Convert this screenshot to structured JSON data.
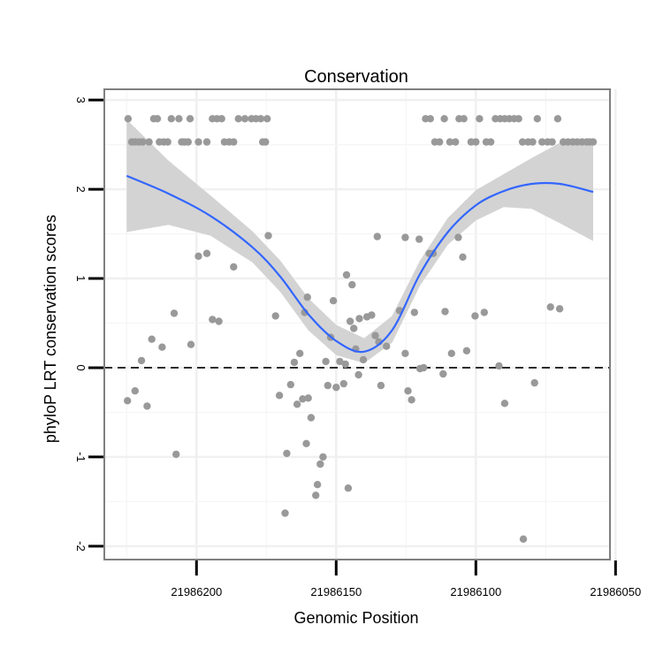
{
  "chart_data": {
    "type": "scatter",
    "title": "Conservation",
    "xlabel": "Genomic Position",
    "ylabel": "phyloP LRT conservation scores",
    "x_reversed": true,
    "xlim": [
      21986052,
      21986233
    ],
    "ylim": [
      -2.15,
      3.12
    ],
    "x_ticks": [
      {
        "value": 21986200,
        "label": "21986200"
      },
      {
        "value": 21986150,
        "label": "21986150"
      },
      {
        "value": 21986100,
        "label": "21986100"
      },
      {
        "value": 21986050,
        "label": "21986050"
      }
    ],
    "y_ticks": [
      {
        "value": -2,
        "label": "-2"
      },
      {
        "value": -1,
        "label": "-1"
      },
      {
        "value": 0,
        "label": "0"
      },
      {
        "value": 1,
        "label": "1"
      },
      {
        "value": 2,
        "label": "2"
      },
      {
        "value": 3,
        "label": "3"
      }
    ],
    "reference_line": {
      "y": 0,
      "style": "dashed"
    },
    "grid": true,
    "colors": {
      "points": "#999999",
      "smooth": "#3366ff",
      "ribbon": "#d3d3d3",
      "reference": "#000000",
      "frame": "#7f7f7f"
    },
    "smooth": {
      "x": [
        21986225,
        21986210,
        21986195,
        21986180,
        21986170,
        21986160,
        21986150,
        21986140,
        21986130,
        21986120,
        21986110,
        21986100,
        21986090,
        21986080,
        21986070,
        21986058
      ],
      "y": [
        2.15,
        1.95,
        1.7,
        1.35,
        1.02,
        0.6,
        0.3,
        0.18,
        0.42,
        1.05,
        1.52,
        1.82,
        1.98,
        2.06,
        2.06,
        1.97
      ],
      "lower": [
        1.52,
        1.6,
        1.48,
        1.18,
        0.85,
        0.42,
        0.14,
        0.05,
        0.28,
        0.92,
        1.38,
        1.65,
        1.8,
        1.78,
        1.62,
        1.42
      ],
      "upper": [
        2.78,
        2.32,
        1.93,
        1.53,
        1.2,
        0.78,
        0.48,
        0.33,
        0.58,
        1.2,
        1.68,
        1.99,
        2.17,
        2.35,
        2.52,
        2.52
      ]
    },
    "points": [
      [
        21986224.5,
        2.79
      ],
      [
        21986223.2,
        2.53
      ],
      [
        21986222.0,
        2.53
      ],
      [
        21986220.6,
        2.53
      ],
      [
        21986219.3,
        2.53
      ],
      [
        21986217.0,
        2.53
      ],
      [
        21986215.3,
        2.79
      ],
      [
        21986214.0,
        2.79
      ],
      [
        21986213.3,
        2.53
      ],
      [
        21986211.7,
        2.53
      ],
      [
        21986210.3,
        2.53
      ],
      [
        21986209.0,
        2.79
      ],
      [
        21986206.3,
        2.79
      ],
      [
        21986205.3,
        2.53
      ],
      [
        21986204.3,
        2.53
      ],
      [
        21986203.0,
        2.53
      ],
      [
        21986202.3,
        2.79
      ],
      [
        21986199.3,
        2.53
      ],
      [
        21986196.3,
        2.53
      ],
      [
        21986194.3,
        2.79
      ],
      [
        21986192.7,
        2.79
      ],
      [
        21986191.0,
        2.79
      ],
      [
        21986190.0,
        2.53
      ],
      [
        21986188.3,
        2.53
      ],
      [
        21986186.7,
        2.53
      ],
      [
        21986185.0,
        2.79
      ],
      [
        21986182.7,
        2.79
      ],
      [
        21986180.3,
        2.79
      ],
      [
        21986178.7,
        2.79
      ],
      [
        21986177.0,
        2.79
      ],
      [
        21986176.3,
        2.53
      ],
      [
        21986175.3,
        2.53
      ],
      [
        21986174.7,
        2.79
      ],
      [
        21986186.7,
        1.13
      ],
      [
        21986174.3,
        1.48
      ],
      [
        21986171.7,
        0.58
      ],
      [
        21986160.3,
        0.79
      ],
      [
        21986146.3,
        1.04
      ],
      [
        21986144.3,
        0.93
      ],
      [
        21986135.3,
        1.47
      ],
      [
        21986125.3,
        1.46
      ],
      [
        21986106.3,
        1.46
      ],
      [
        21986104.7,
        1.24
      ],
      [
        21986111.0,
        0.63
      ],
      [
        21986120.3,
        1.44
      ],
      [
        21986224.7,
        -0.37
      ],
      [
        21986222.0,
        -0.26
      ],
      [
        21986219.7,
        0.08
      ],
      [
        21986217.7,
        -0.43
      ],
      [
        21986216.0,
        0.32
      ],
      [
        21986212.3,
        0.23
      ],
      [
        21986208.0,
        0.61
      ],
      [
        21986207.3,
        -0.97
      ],
      [
        21986202.0,
        0.26
      ],
      [
        21986199.3,
        1.25
      ],
      [
        21986196.3,
        1.28
      ],
      [
        21986194.3,
        0.54
      ],
      [
        21986192.0,
        0.52
      ],
      [
        21986170.3,
        -0.31
      ],
      [
        21986167.7,
        -0.96
      ],
      [
        21986166.3,
        -0.19
      ],
      [
        21986165.0,
        0.06
      ],
      [
        21986163.0,
        0.16
      ],
      [
        21986168.3,
        -1.63
      ],
      [
        21986164.0,
        -0.41
      ],
      [
        21986162.0,
        -0.35
      ],
      [
        21986161.3,
        0.62
      ],
      [
        21986160.7,
        -0.85
      ],
      [
        21986160.0,
        -0.34
      ],
      [
        21986159.0,
        -0.56
      ],
      [
        21986157.3,
        -1.43
      ],
      [
        21986156.7,
        -1.31
      ],
      [
        21986155.7,
        -1.08
      ],
      [
        21986154.7,
        -1.0
      ],
      [
        21986153.7,
        0.07
      ],
      [
        21986153.0,
        -0.2
      ],
      [
        21986152.0,
        0.34
      ],
      [
        21986151.0,
        0.75
      ],
      [
        21986150.0,
        -0.22
      ],
      [
        21986148.7,
        0.07
      ],
      [
        21986147.3,
        -0.18
      ],
      [
        21986146.7,
        0.04
      ],
      [
        21986145.7,
        -1.35
      ],
      [
        21986145.0,
        0.52
      ],
      [
        21986143.7,
        0.44
      ],
      [
        21986143.0,
        0.21
      ],
      [
        21986142.0,
        -0.08
      ],
      [
        21986141.7,
        0.55
      ],
      [
        21986140.3,
        0.09
      ],
      [
        21986139.0,
        0.57
      ],
      [
        21986137.3,
        0.59
      ],
      [
        21986136.0,
        0.36
      ],
      [
        21986134.7,
        0.29
      ],
      [
        21986134.0,
        -0.2
      ],
      [
        21986132.0,
        0.24
      ],
      [
        21986127.3,
        0.64
      ],
      [
        21986125.3,
        0.16
      ],
      [
        21986124.3,
        -0.26
      ],
      [
        21986123.0,
        -0.36
      ],
      [
        21986122.0,
        0.62
      ],
      [
        21986120.0,
        -0.01
      ],
      [
        21986118.7,
        0.0
      ],
      [
        21986116.7,
        1.28
      ],
      [
        21986115.3,
        1.28
      ],
      [
        21986111.7,
        -0.07
      ],
      [
        21986108.7,
        0.16
      ],
      [
        21986103.3,
        0.19
      ],
      [
        21986100.3,
        0.58
      ],
      [
        21986097.0,
        0.62
      ],
      [
        21986091.7,
        0.02
      ],
      [
        21986089.7,
        -0.4
      ],
      [
        21986083.0,
        -1.92
      ],
      [
        21986079.0,
        -0.17
      ],
      [
        21986073.3,
        0.68
      ],
      [
        21986070.0,
        0.66
      ],
      [
        21986118.0,
        2.79
      ],
      [
        21986116.3,
        2.79
      ],
      [
        21986114.7,
        2.53
      ],
      [
        21986113.0,
        2.53
      ],
      [
        21986111.3,
        2.79
      ],
      [
        21986109.3,
        2.53
      ],
      [
        21986107.3,
        2.53
      ],
      [
        21986106.0,
        2.79
      ],
      [
        21986104.3,
        2.79
      ],
      [
        21986101.7,
        2.53
      ],
      [
        21986100.0,
        2.53
      ],
      [
        21986098.7,
        2.79
      ],
      [
        21986096.3,
        2.53
      ],
      [
        21986094.7,
        2.53
      ],
      [
        21986093.0,
        2.79
      ],
      [
        21986091.3,
        2.79
      ],
      [
        21986089.7,
        2.79
      ],
      [
        21986088.0,
        2.79
      ],
      [
        21986086.3,
        2.79
      ],
      [
        21986084.7,
        2.79
      ],
      [
        21986083.3,
        2.53
      ],
      [
        21986081.3,
        2.53
      ],
      [
        21986079.7,
        2.53
      ],
      [
        21986078.0,
        2.79
      ],
      [
        21986076.3,
        2.53
      ],
      [
        21986074.3,
        2.53
      ],
      [
        21986072.7,
        2.53
      ],
      [
        21986070.7,
        2.79
      ],
      [
        21986068.7,
        2.53
      ],
      [
        21986067.0,
        2.53
      ],
      [
        21986065.3,
        2.53
      ],
      [
        21986063.7,
        2.53
      ],
      [
        21986062.0,
        2.53
      ],
      [
        21986060.3,
        2.53
      ],
      [
        21986059.3,
        2.53
      ],
      [
        21986058.0,
        2.53
      ]
    ]
  }
}
